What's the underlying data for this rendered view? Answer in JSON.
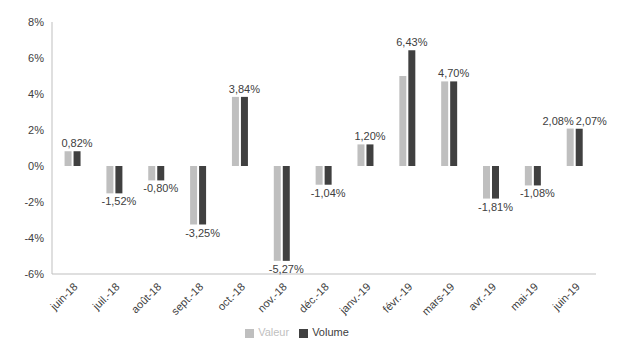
{
  "chart_data": {
    "type": "bar",
    "categories": [
      "juin-18",
      "juil.-18",
      "août-18",
      "sept.-18",
      "oct.-18",
      "nov.-18",
      "déc.-18",
      "janv.-19",
      "févr.-19",
      "mars-19",
      "avr.-19",
      "mai-19",
      "juin-19"
    ],
    "series": [
      {
        "name": "Valeur",
        "color": "#bfbfbf",
        "values": [
          0.82,
          -1.52,
          -0.8,
          -3.25,
          3.84,
          -5.27,
          -1.04,
          1.2,
          5.0,
          4.7,
          -1.81,
          -1.08,
          2.08
        ],
        "value_labels": [
          null,
          null,
          null,
          null,
          null,
          null,
          null,
          null,
          null,
          null,
          null,
          null,
          "2,08%"
        ]
      },
      {
        "name": "Volume",
        "color": "#404040",
        "values": [
          0.82,
          -1.52,
          -0.8,
          -3.25,
          3.84,
          -5.27,
          -1.04,
          1.2,
          6.43,
          4.7,
          -1.81,
          -1.08,
          2.07
        ],
        "value_labels": [
          "0,82%",
          "-1,52%",
          "-0,80%",
          "-3,25%",
          "3,84%",
          "-5,27%",
          "-1,04%",
          "1,20%",
          "6,43%",
          "4,70%",
          "-1,81%",
          "-1,08%",
          "2,07%"
        ]
      }
    ],
    "ylim": [
      -6,
      8
    ],
    "yticks": [
      {
        "value": -6,
        "label": "-6%"
      },
      {
        "value": -4,
        "label": "-4%"
      },
      {
        "value": -2,
        "label": "-2%"
      },
      {
        "value": 0,
        "label": "0%"
      },
      {
        "value": 2,
        "label": "2%"
      },
      {
        "value": 4,
        "label": "4%"
      },
      {
        "value": 6,
        "label": "6%"
      },
      {
        "value": 8,
        "label": "8%"
      }
    ],
    "grid": false,
    "legend": "bottom",
    "data_labels": true
  }
}
